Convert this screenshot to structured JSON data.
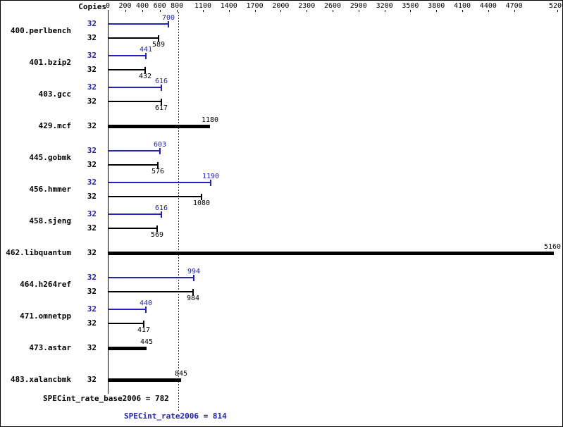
{
  "copies_header": "Copies",
  "colors": {
    "peak": "#2222bb",
    "base": "#000000"
  },
  "axis": {
    "max_value": 5200,
    "ticks": [
      0,
      200,
      400,
      600,
      800,
      1100,
      1400,
      1700,
      2000,
      2300,
      2600,
      2900,
      3200,
      3500,
      3800,
      4100,
      4400,
      4700,
      5200
    ]
  },
  "benchmarks": [
    {
      "name": "400.perlbench",
      "rows": [
        {
          "kind": "peak",
          "copies": "32",
          "value": 700
        },
        {
          "kind": "base",
          "copies": "32",
          "value": 589
        }
      ]
    },
    {
      "name": "401.bzip2",
      "rows": [
        {
          "kind": "peak",
          "copies": "32",
          "value": 441
        },
        {
          "kind": "base",
          "copies": "32",
          "value": 432
        }
      ]
    },
    {
      "name": "403.gcc",
      "rows": [
        {
          "kind": "peak",
          "copies": "32",
          "value": 616
        },
        {
          "kind": "base",
          "copies": "32",
          "value": 617
        }
      ]
    },
    {
      "name": "429.mcf",
      "rows": [
        {
          "kind": "both",
          "copies": "32",
          "value": 1180
        }
      ]
    },
    {
      "name": "445.gobmk",
      "rows": [
        {
          "kind": "peak",
          "copies": "32",
          "value": 603
        },
        {
          "kind": "base",
          "copies": "32",
          "value": 576
        }
      ]
    },
    {
      "name": "456.hmmer",
      "rows": [
        {
          "kind": "peak",
          "copies": "32",
          "value": 1190
        },
        {
          "kind": "base",
          "copies": "32",
          "value": 1080
        }
      ]
    },
    {
      "name": "458.sjeng",
      "rows": [
        {
          "kind": "peak",
          "copies": "32",
          "value": 616
        },
        {
          "kind": "base",
          "copies": "32",
          "value": 569
        }
      ]
    },
    {
      "name": "462.libquantum",
      "rows": [
        {
          "kind": "both",
          "copies": "32",
          "value": 5160
        }
      ]
    },
    {
      "name": "464.h264ref",
      "rows": [
        {
          "kind": "peak",
          "copies": "32",
          "value": 994
        },
        {
          "kind": "base",
          "copies": "32",
          "value": 984
        }
      ]
    },
    {
      "name": "471.omnetpp",
      "rows": [
        {
          "kind": "peak",
          "copies": "32",
          "value": 440
        },
        {
          "kind": "base",
          "copies": "32",
          "value": 417
        }
      ]
    },
    {
      "name": "473.astar",
      "rows": [
        {
          "kind": "both",
          "copies": "32",
          "value": 445
        }
      ]
    },
    {
      "name": "483.xalancbmk",
      "rows": [
        {
          "kind": "both",
          "copies": "32",
          "value": 845
        }
      ]
    }
  ],
  "footer": {
    "base_text": "SPECint_rate_base2006 = 782",
    "peak_text": "SPECint_rate2006 = 814"
  },
  "chart_data": {
    "type": "bar",
    "orientation": "horizontal",
    "title": "",
    "xlabel": "",
    "ylabel": "Copies",
    "x_ticks": [
      0,
      200,
      400,
      600,
      800,
      1100,
      1400,
      1700,
      2000,
      2300,
      2600,
      2900,
      3200,
      3500,
      3800,
      4100,
      4400,
      4700,
      5200
    ],
    "xlim": [
      0,
      5200
    ],
    "copies_per_benchmark": 32,
    "categories": [
      "400.perlbench",
      "401.bzip2",
      "403.gcc",
      "429.mcf",
      "445.gobmk",
      "456.hmmer",
      "458.sjeng",
      "462.libquantum",
      "464.h264ref",
      "471.omnetpp",
      "473.astar",
      "483.xalancbmk"
    ],
    "series": [
      {
        "name": "peak",
        "color": "#2222bb",
        "values": [
          700,
          441,
          616,
          1180,
          603,
          1190,
          616,
          5160,
          994,
          440,
          445,
          845
        ]
      },
      {
        "name": "base",
        "color": "#000000",
        "values": [
          589,
          432,
          617,
          1180,
          576,
          1080,
          569,
          5160,
          984,
          417,
          445,
          845
        ]
      }
    ],
    "single_bar_means_base_equals_peak": [
      "429.mcf",
      "462.libquantum",
      "473.astar",
      "483.xalancbmk"
    ],
    "summary": {
      "SPECint_rate_base2006": 782,
      "SPECint_rate2006": 814
    },
    "reference_line": 814,
    "legend": false,
    "grid": false
  }
}
